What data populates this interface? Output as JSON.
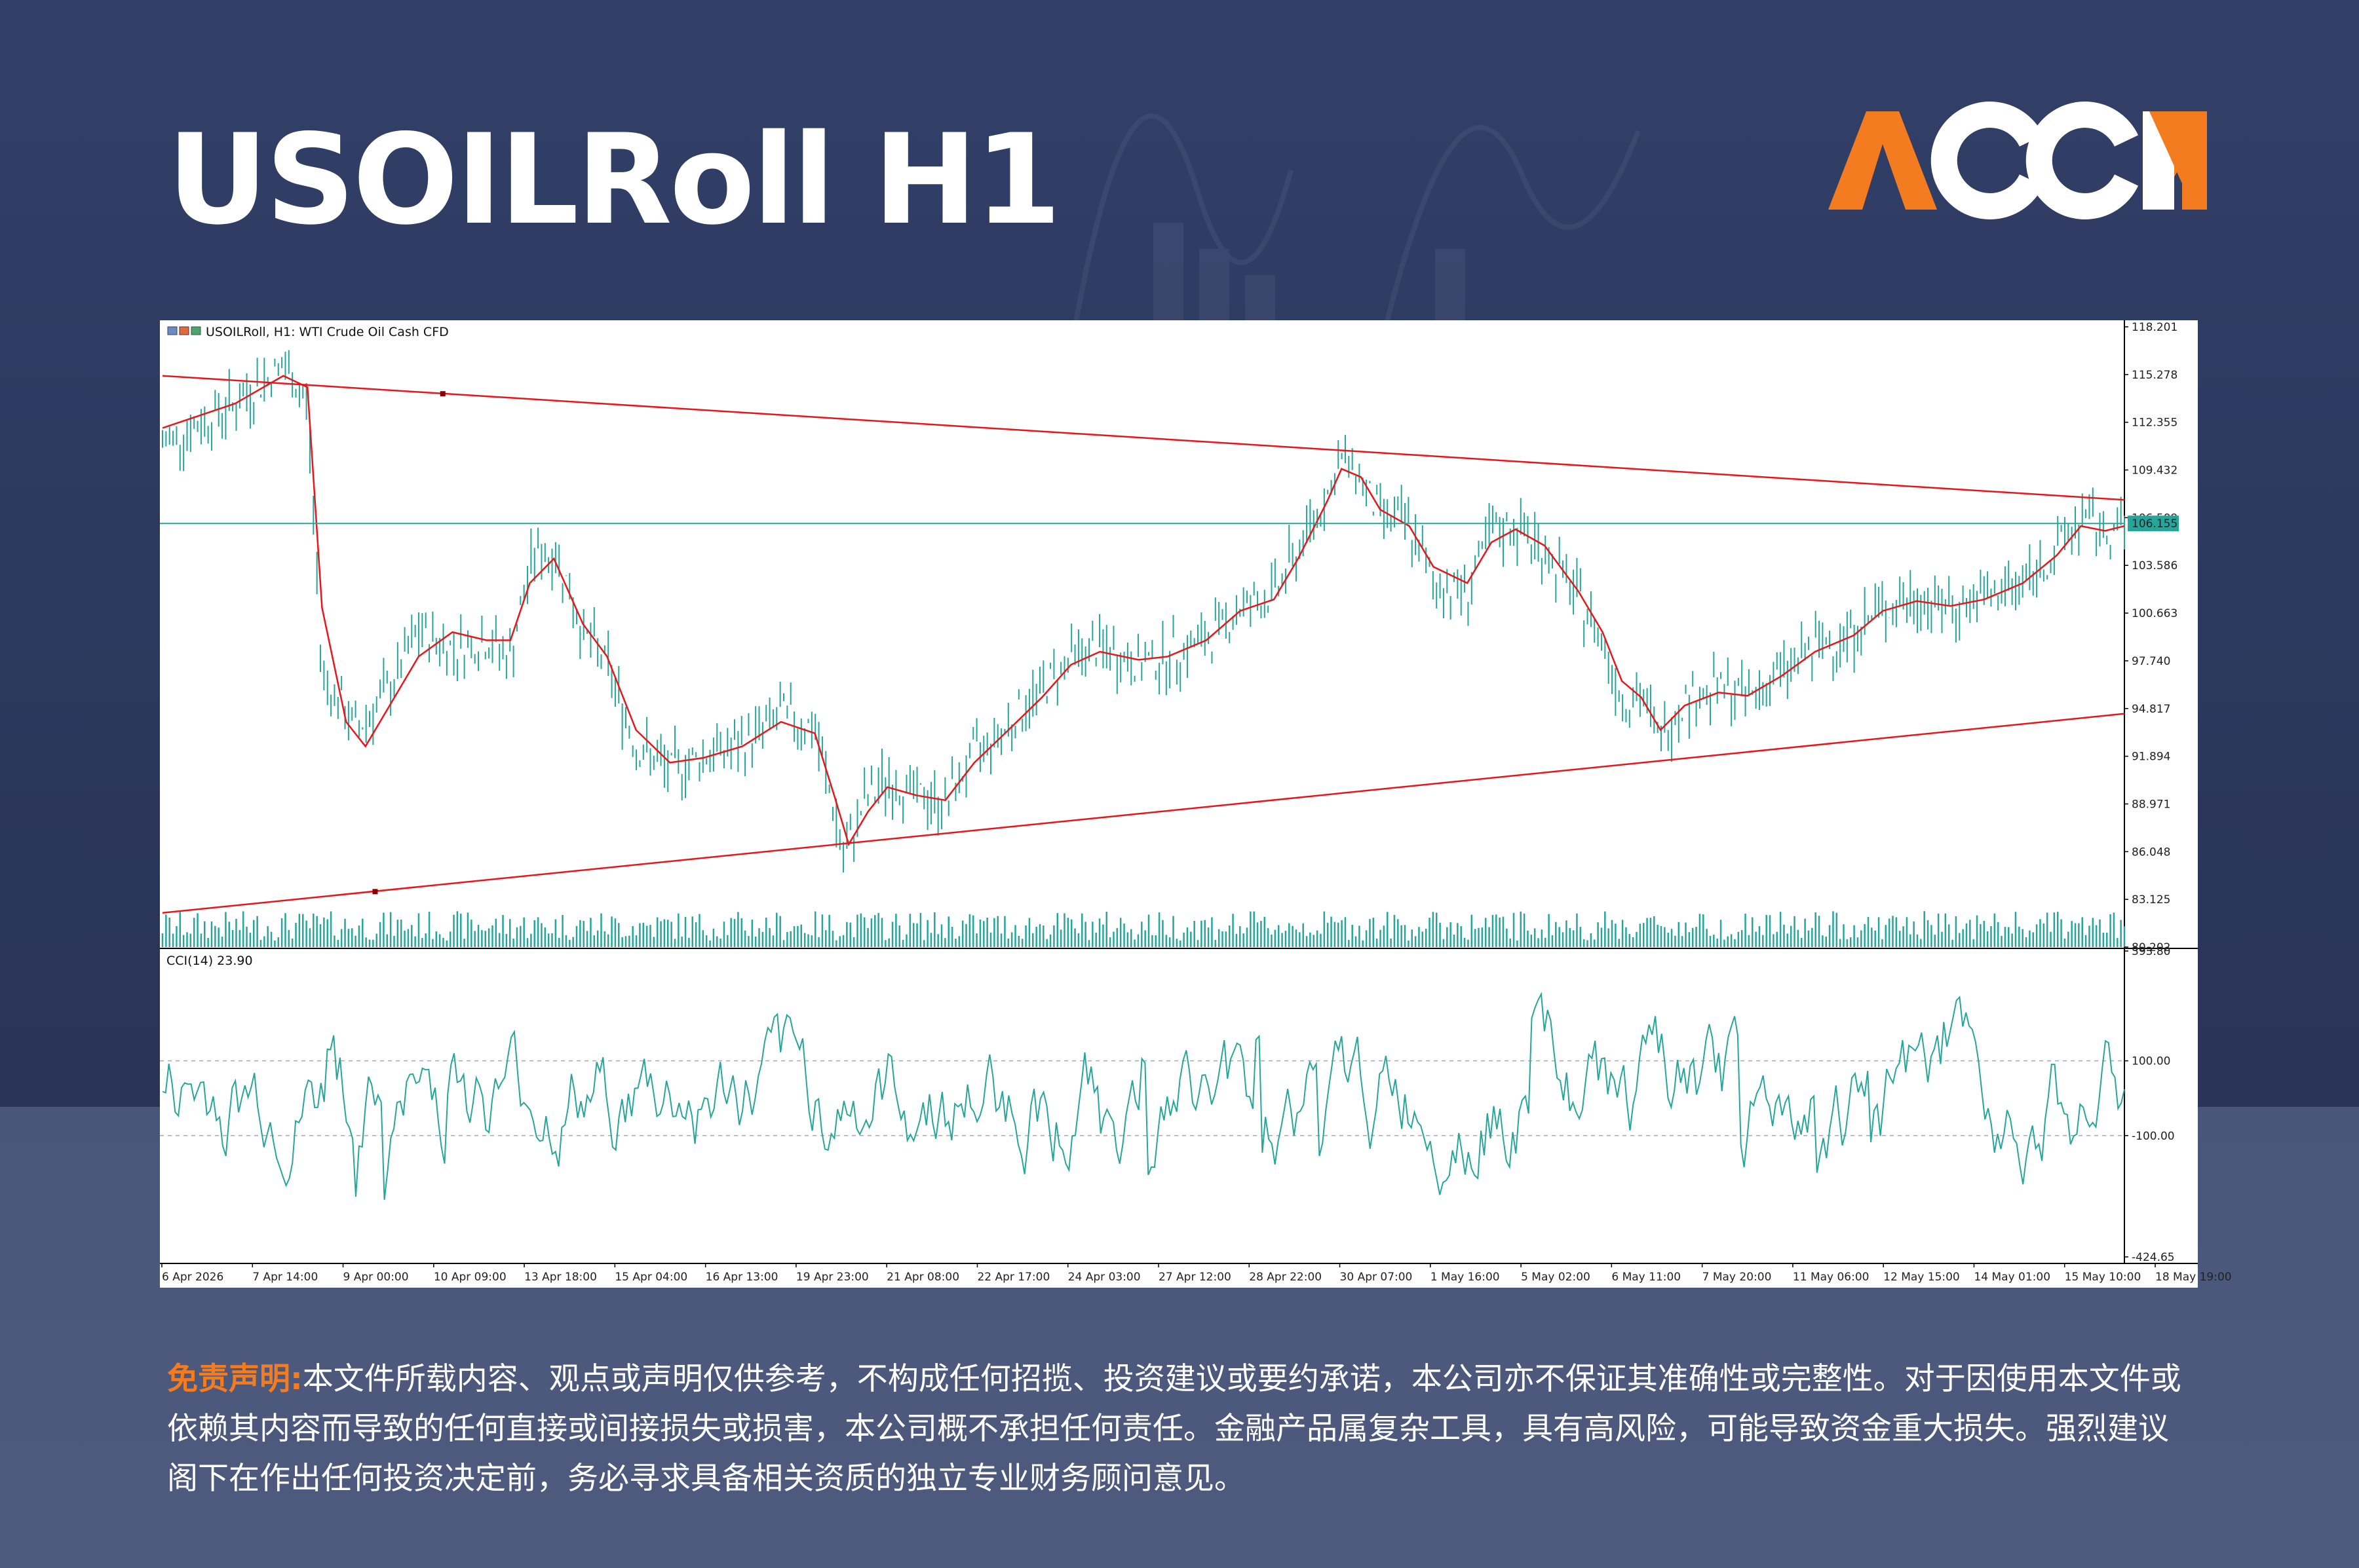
{
  "page": {
    "title": "USOILRoll H1"
  },
  "brand": {
    "logo_text": "ACCM",
    "accent_color": "#f47c20",
    "text_color": "#ffffff"
  },
  "disclaimer": {
    "label": "免责声明:",
    "text": "本文件所载内容、观点或声明仅供参考，不构成任何招揽、投资建议或要约承诺，本公司亦不保证其准确性或完整性。对于因使用本文件或依赖其内容而导致的任何直接或间接损失或损害，本公司概不承担任何责任。金融产品属复杂工具，具有高风险，可能导致资金重大损失。强烈建议阁下在作出任何投资决定前，务必寻求具备相关资质的独立专业财务顾问意见。"
  },
  "chart_data": {
    "type": "candlestick",
    "info": "USOILRoll, H1:  WTI Crude Oil Cash CFD",
    "icons": [
      "chart-window-icon",
      "properties-icon",
      "bar-chart-icon"
    ],
    "colors": {
      "bars": "#26a69a",
      "moving_average": "#e8161b",
      "trendlines": "#e8161b",
      "price_line": "#26a69a",
      "cci": "#26a69a"
    },
    "price_axis": {
      "ticks": [
        118.201,
        115.278,
        112.355,
        109.432,
        106.509,
        103.586,
        100.663,
        97.74,
        94.817,
        91.894,
        88.971,
        86.048,
        83.125,
        80.202
      ],
      "ylim": [
        80.202,
        118.201
      ]
    },
    "current_price": 106.155,
    "x_labels": [
      "6 Apr 2026",
      "7 Apr 14:00",
      "9 Apr 00:00",
      "10 Apr 09:00",
      "13 Apr 18:00",
      "15 Apr 04:00",
      "16 Apr 13:00",
      "19 Apr 23:00",
      "21 Apr 08:00",
      "22 Apr 17:00",
      "24 Apr 03:00",
      "27 Apr 12:00",
      "28 Apr 22:00",
      "30 Apr 07:00",
      "1 May 16:00",
      "5 May 02:00",
      "6 May 11:00",
      "7 May 20:00",
      "11 May 06:00",
      "12 May 15:00",
      "14 May 01:00",
      "15 May 10:00",
      "18 May 19:00"
    ],
    "close_path": [
      [
        0,
        111.0
      ],
      [
        1.5,
        113.5
      ],
      [
        2.5,
        115.8
      ],
      [
        3.0,
        113.5
      ],
      [
        3.3,
        97.0
      ],
      [
        4.0,
        93.5
      ],
      [
        4.7,
        96.0
      ],
      [
        5.3,
        99.5
      ],
      [
        6.0,
        98.5
      ],
      [
        6.7,
        99.0
      ],
      [
        7.2,
        98.0
      ],
      [
        7.7,
        104.5
      ],
      [
        8.2,
        104.0
      ],
      [
        8.7,
        99.5
      ],
      [
        9.2,
        97.5
      ],
      [
        9.8,
        92.5
      ],
      [
        10.5,
        91.0
      ],
      [
        11.2,
        92.0
      ],
      [
        12.0,
        92.5
      ],
      [
        12.8,
        94.5
      ],
      [
        13.5,
        93.5
      ],
      [
        13.9,
        88.5
      ],
      [
        14.1,
        85.5
      ],
      [
        14.5,
        89.0
      ],
      [
        15.0,
        90.5
      ],
      [
        15.6,
        89.5
      ],
      [
        16.2,
        89.0
      ],
      [
        16.8,
        92.0
      ],
      [
        17.4,
        93.5
      ],
      [
        18.2,
        96.0
      ],
      [
        18.8,
        98.0
      ],
      [
        19.4,
        98.5
      ],
      [
        20.2,
        97.5
      ],
      [
        20.8,
        98.0
      ],
      [
        21.6,
        99.0
      ],
      [
        22.3,
        101.0
      ],
      [
        23.0,
        101.8
      ],
      [
        23.5,
        104.5
      ],
      [
        24.1,
        108.0
      ],
      [
        24.4,
        110.0
      ],
      [
        24.7,
        109.5
      ],
      [
        25.1,
        107.0
      ],
      [
        25.8,
        106.0
      ],
      [
        26.3,
        102.5
      ],
      [
        27.0,
        102.0
      ],
      [
        27.5,
        105.5
      ],
      [
        28.0,
        106.0
      ],
      [
        28.6,
        104.5
      ],
      [
        29.3,
        101.5
      ],
      [
        29.8,
        99.0
      ],
      [
        30.2,
        95.5
      ],
      [
        30.6,
        95.5
      ],
      [
        31.0,
        93.0
      ],
      [
        31.5,
        95.5
      ],
      [
        32.2,
        96.0
      ],
      [
        32.8,
        95.5
      ],
      [
        33.5,
        97.0
      ],
      [
        34.2,
        98.5
      ],
      [
        35.0,
        99.5
      ],
      [
        35.6,
        101.0
      ],
      [
        36.3,
        101.5
      ],
      [
        37.0,
        101.0
      ],
      [
        37.7,
        101.5
      ],
      [
        38.5,
        102.5
      ],
      [
        39.2,
        104.5
      ],
      [
        39.7,
        106.5
      ],
      [
        40.2,
        105.5
      ],
      [
        40.6,
        106.0
      ]
    ],
    "moving_average_path": [
      [
        0,
        112.0
      ],
      [
        1.5,
        113.5
      ],
      [
        2.5,
        115.2
      ],
      [
        3.0,
        114.5
      ],
      [
        3.3,
        101.0
      ],
      [
        3.8,
        94.0
      ],
      [
        4.2,
        92.5
      ],
      [
        4.7,
        95.0
      ],
      [
        5.3,
        98.0
      ],
      [
        6.0,
        99.5
      ],
      [
        6.7,
        99.0
      ],
      [
        7.2,
        99.0
      ],
      [
        7.6,
        102.5
      ],
      [
        8.1,
        104.0
      ],
      [
        8.7,
        100.0
      ],
      [
        9.2,
        98.0
      ],
      [
        9.8,
        93.5
      ],
      [
        10.5,
        91.5
      ],
      [
        11.2,
        91.8
      ],
      [
        12.0,
        92.5
      ],
      [
        12.8,
        94.0
      ],
      [
        13.5,
        93.3
      ],
      [
        13.9,
        89.5
      ],
      [
        14.2,
        86.5
      ],
      [
        14.6,
        88.5
      ],
      [
        15.0,
        90.0
      ],
      [
        15.6,
        89.5
      ],
      [
        16.2,
        89.2
      ],
      [
        16.8,
        91.5
      ],
      [
        17.4,
        93.2
      ],
      [
        18.2,
        95.5
      ],
      [
        18.8,
        97.5
      ],
      [
        19.4,
        98.3
      ],
      [
        20.2,
        97.8
      ],
      [
        20.8,
        98.0
      ],
      [
        21.6,
        99.0
      ],
      [
        22.3,
        100.8
      ],
      [
        23.0,
        101.5
      ],
      [
        23.5,
        104.0
      ],
      [
        24.1,
        107.5
      ],
      [
        24.4,
        109.5
      ],
      [
        24.8,
        109.0
      ],
      [
        25.2,
        107.0
      ],
      [
        25.8,
        106.0
      ],
      [
        26.3,
        103.5
      ],
      [
        27.0,
        102.5
      ],
      [
        27.5,
        105.0
      ],
      [
        28.0,
        105.8
      ],
      [
        28.6,
        104.8
      ],
      [
        29.3,
        102.0
      ],
      [
        29.8,
        99.5
      ],
      [
        30.2,
        96.5
      ],
      [
        30.6,
        95.5
      ],
      [
        31.0,
        93.5
      ],
      [
        31.5,
        95.0
      ],
      [
        32.2,
        95.8
      ],
      [
        32.8,
        95.6
      ],
      [
        33.5,
        96.8
      ],
      [
        34.2,
        98.3
      ],
      [
        35.0,
        99.3
      ],
      [
        35.6,
        100.8
      ],
      [
        36.3,
        101.4
      ],
      [
        37.0,
        101.1
      ],
      [
        37.7,
        101.5
      ],
      [
        38.5,
        102.5
      ],
      [
        39.2,
        104.2
      ],
      [
        39.7,
        106.0
      ],
      [
        40.2,
        105.7
      ],
      [
        40.6,
        106.0
      ]
    ],
    "trendlines": [
      {
        "name": "resistance",
        "from": [
          0,
          115.2
        ],
        "to": [
          40.6,
          107.6
        ]
      },
      {
        "name": "support",
        "from": [
          0,
          82.3
        ],
        "to": [
          40.6,
          94.5
        ]
      }
    ],
    "cci": {
      "label": "CCI(14) 23.90",
      "ticks": [
        393.8,
        100.0,
        -100.0,
        -424.65
      ],
      "ylim": [
        -424.65,
        393.8
      ],
      "levels": [
        100,
        -100
      ],
      "current": 23.9
    }
  }
}
